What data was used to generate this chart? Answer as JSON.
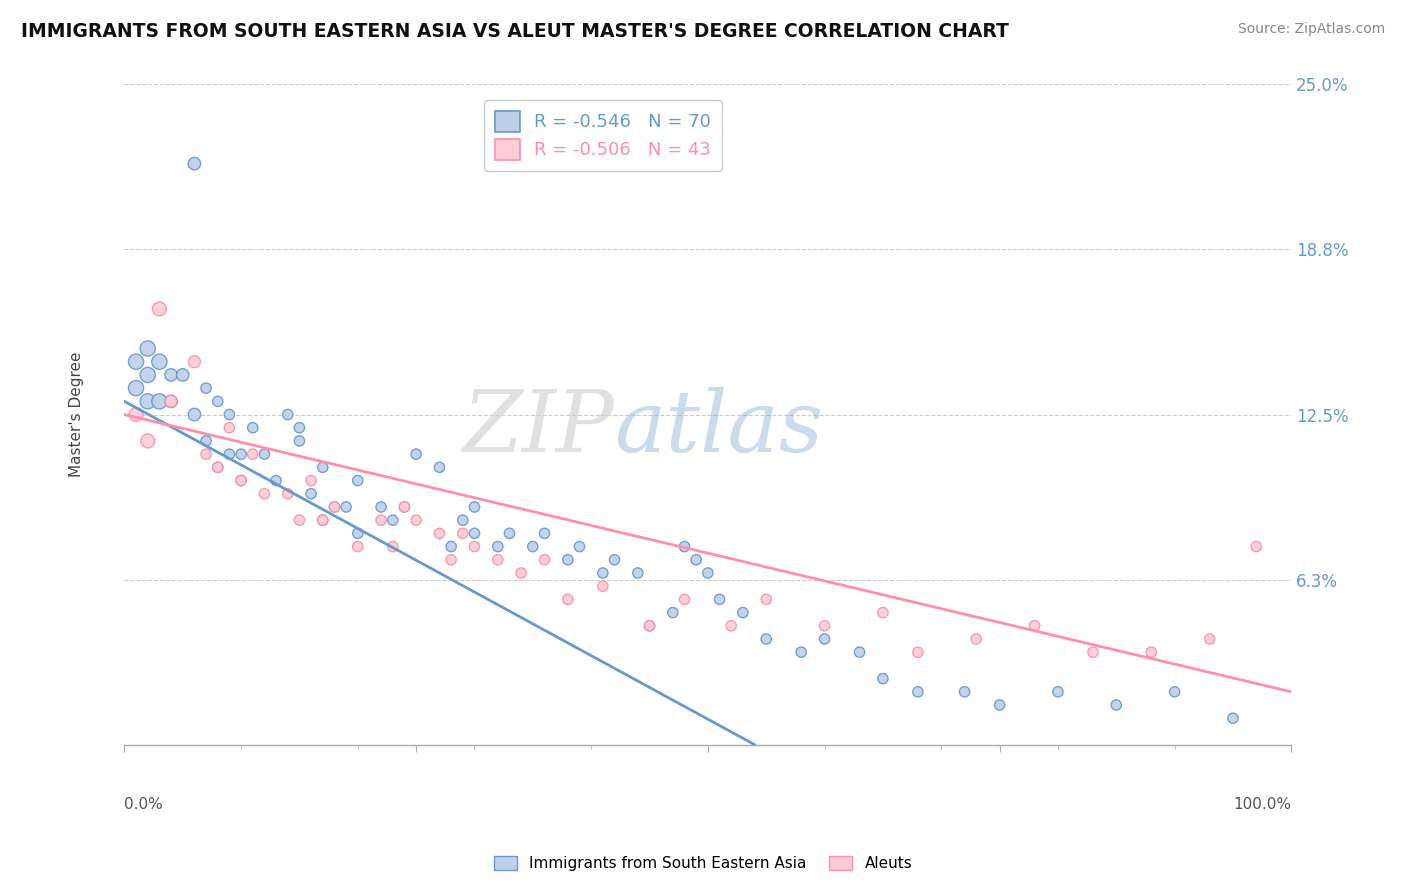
{
  "title": "IMMIGRANTS FROM SOUTH EASTERN ASIA VS ALEUT MASTER'S DEGREE CORRELATION CHART",
  "source": "Source: ZipAtlas.com",
  "xlabel_blue": "Immigrants from South Eastern Asia",
  "xlabel_pink": "Aleuts",
  "ylabel": "Master's Degree",
  "r_blue": -0.546,
  "n_blue": 70,
  "r_pink": -0.506,
  "n_pink": 43,
  "blue_color": "#6699CC",
  "pink_color": "#FF8FAB",
  "blue_face": "#BFCFE8",
  "pink_face": "#FFCCD5",
  "xlim": [
    0,
    100
  ],
  "ylim": [
    0,
    25
  ],
  "yticks": [
    0,
    6.25,
    12.5,
    18.75,
    25.0
  ],
  "ytick_labels": [
    "",
    "6.3%",
    "12.5%",
    "18.8%",
    "25.0%"
  ],
  "xtick_labels_bottom": [
    "0.0%",
    "100.0%"
  ],
  "watermark_zip": "ZIP",
  "watermark_atlas": "atlas",
  "blue_line_x": [
    0,
    54
  ],
  "blue_line_y": [
    13.0,
    0.0
  ],
  "pink_line_x": [
    0,
    100
  ],
  "pink_line_y": [
    12.5,
    2.0
  ],
  "blue_points_x": [
    1,
    1,
    2,
    2,
    2,
    3,
    3,
    4,
    4,
    5,
    6,
    6,
    7,
    7,
    8,
    8,
    9,
    9,
    10,
    10,
    11,
    12,
    13,
    14,
    15,
    15,
    16,
    17,
    17,
    18,
    19,
    20,
    20,
    22,
    23,
    24,
    25,
    27,
    28,
    29,
    30,
    30,
    32,
    33,
    35,
    36,
    38,
    39,
    41,
    42,
    44,
    45,
    47,
    48,
    49,
    50,
    51,
    53,
    55,
    58,
    60,
    63,
    65,
    68,
    72,
    75,
    80,
    85,
    90,
    95
  ],
  "blue_points_y": [
    14.5,
    13.5,
    15.0,
    14.0,
    13.0,
    14.5,
    13.0,
    14.0,
    13.0,
    14.0,
    22.0,
    12.5,
    13.5,
    11.5,
    10.5,
    13.0,
    11.0,
    12.5,
    11.0,
    10.0,
    12.0,
    11.0,
    10.0,
    12.5,
    11.5,
    12.0,
    9.5,
    8.5,
    10.5,
    9.0,
    9.0,
    8.0,
    10.0,
    9.0,
    8.5,
    9.0,
    11.0,
    10.5,
    7.5,
    8.5,
    8.0,
    9.0,
    7.5,
    8.0,
    7.5,
    8.0,
    7.0,
    7.5,
    6.5,
    7.0,
    6.5,
    4.5,
    5.0,
    7.5,
    7.0,
    6.5,
    5.5,
    5.0,
    4.0,
    3.5,
    4.0,
    3.5,
    2.5,
    2.0,
    2.0,
    1.5,
    2.0,
    1.5,
    2.0,
    1.0
  ],
  "pink_points_x": [
    1,
    2,
    3,
    4,
    6,
    7,
    8,
    9,
    10,
    11,
    12,
    14,
    15,
    16,
    17,
    18,
    20,
    22,
    23,
    24,
    25,
    27,
    28,
    29,
    30,
    32,
    34,
    36,
    38,
    41,
    45,
    48,
    52,
    55,
    60,
    65,
    68,
    73,
    78,
    83,
    88,
    93,
    97
  ],
  "pink_points_y": [
    12.5,
    11.5,
    16.5,
    13.0,
    14.5,
    11.0,
    10.5,
    12.0,
    10.0,
    11.0,
    9.5,
    9.5,
    8.5,
    10.0,
    8.5,
    9.0,
    7.5,
    8.5,
    7.5,
    9.0,
    8.5,
    8.0,
    7.0,
    8.0,
    7.5,
    7.0,
    6.5,
    7.0,
    5.5,
    6.0,
    4.5,
    5.5,
    4.5,
    5.5,
    4.5,
    5.0,
    3.5,
    4.0,
    4.5,
    3.5,
    3.5,
    4.0,
    7.5
  ]
}
